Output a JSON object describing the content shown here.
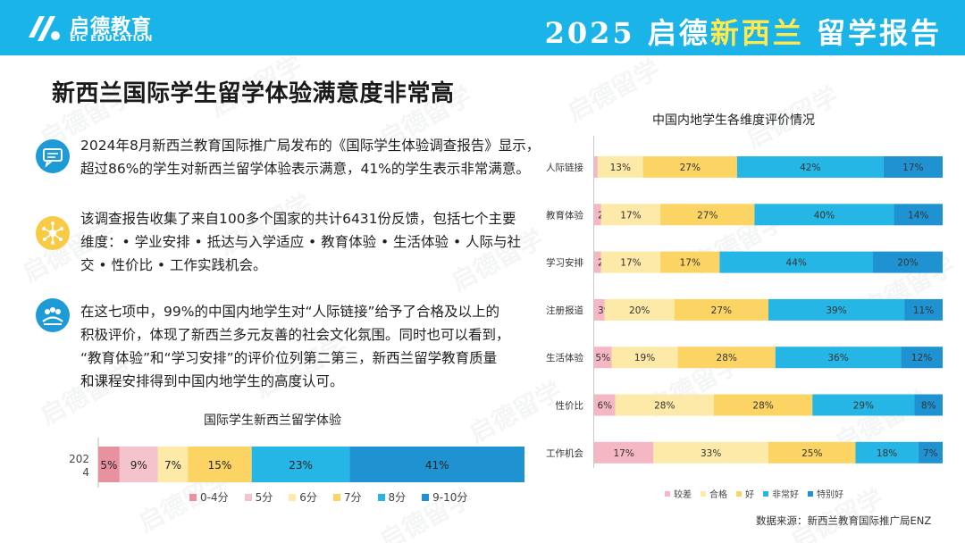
{
  "header": {
    "logo_cn": "启德教育",
    "logo_en": "EIC EDUCATION",
    "title_year": "2025",
    "title_brand": "启德",
    "title_country": "新西兰",
    "title_suffix": "留学报告"
  },
  "watermark": "启德留学",
  "page_title": "新西兰国际学生留学体验满意度非常高",
  "paragraphs": [
    {
      "icon": "chat-bubble-icon",
      "lines": [
        "2024年8月新西兰教育国际推广局发布的《国际学生体验调查报告》显示，",
        "超过86%的学生对新西兰留学体验表示满意，41%的学生表示非常满意。"
      ]
    },
    {
      "icon": "network-icon",
      "lines": [
        "该调查报告收集了来自100多个国家的共计6431份反馈，包括七个主要",
        "维度：• 学业安排 • 抵达与入学适应 • 教育体验 • 生活体验  • 人际与社",
        "交 • 性价比 • 工作实践机会。"
      ]
    },
    {
      "icon": "people-icon",
      "lines": [
        "在这七项中，99%的中国内地学生对“人际链接”给予了合格及以上的",
        "积极评价，体现了新西兰多元友善的社会文化氛围。同时也可以看到，",
        "“教育体验”和“学习安排”的评价位列第二第三，新西兰留学教育质量",
        "和课程安排得到中国内地学生的高度认可。"
      ]
    }
  ],
  "chart_data": [
    {
      "type": "bar",
      "orientation": "horizontal-stacked",
      "title": "国际学生新西兰留学体验",
      "categories": [
        "2024"
      ],
      "category_display": [
        "202",
        "4"
      ],
      "series": [
        {
          "name": "0-4分",
          "values": [
            5
          ],
          "color": "#e8919f"
        },
        {
          "name": "5分",
          "values": [
            9
          ],
          "color": "#f5c3cb"
        },
        {
          "name": "6分",
          "values": [
            7
          ],
          "color": "#fde9a8"
        },
        {
          "name": "7分",
          "values": [
            15
          ],
          "color": "#fbd463"
        },
        {
          "name": "8分",
          "values": [
            23
          ],
          "color": "#25b6e6"
        },
        {
          "name": "9-10分",
          "values": [
            41
          ],
          "color": "#1f93d2"
        }
      ],
      "data_labels": [
        "5%",
        "9%",
        "7%",
        "15%",
        "23%",
        "41%"
      ],
      "legend_position": "bottom"
    },
    {
      "type": "bar",
      "orientation": "horizontal-stacked",
      "title": "中国内地学生各维度评价情况",
      "categories": [
        "人际链接",
        "教育体验",
        "学习安排",
        "注册报道",
        "生活体验",
        "性价比",
        "工作机会"
      ],
      "series": [
        {
          "name": "较差",
          "values": [
            1,
            2,
            2,
            3,
            5,
            6,
            17
          ],
          "color": "#f5b7c4"
        },
        {
          "name": "合格",
          "values": [
            13,
            17,
            17,
            20,
            19,
            28,
            33
          ],
          "color": "#fde9a8"
        },
        {
          "name": "好",
          "values": [
            27,
            27,
            17,
            27,
            28,
            28,
            25
          ],
          "color": "#fbd463"
        },
        {
          "name": "非常好",
          "values": [
            42,
            40,
            44,
            39,
            36,
            29,
            18
          ],
          "color": "#25b6e6"
        },
        {
          "name": "特别好",
          "values": [
            17,
            14,
            20,
            11,
            12,
            8,
            7
          ],
          "color": "#1f93d2"
        }
      ],
      "legend_position": "bottom"
    }
  ],
  "source": "数据来源：新西兰教育国际推广局ENZ"
}
